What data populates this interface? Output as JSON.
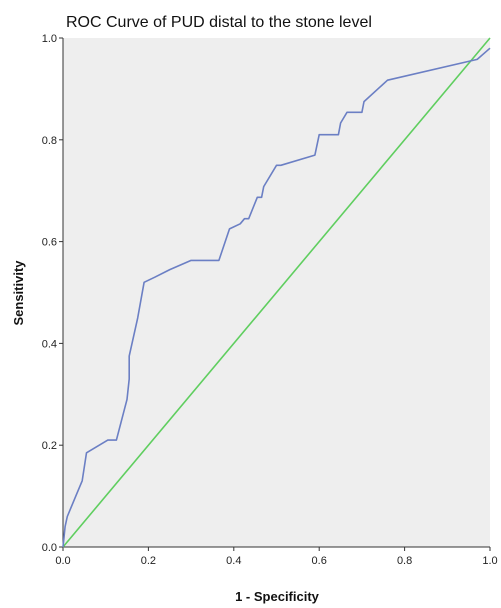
{
  "chart_data": {
    "type": "line",
    "title": "ROC Curve of PUD distal to the stone level",
    "xlabel": "1 - Specificity",
    "ylabel": "Sensitivity",
    "xlim": [
      0,
      1
    ],
    "ylim": [
      0,
      1
    ],
    "x_ticks": [
      "0.0",
      "0.2",
      "0.4",
      "0.6",
      "0.8",
      "1.0"
    ],
    "y_ticks": [
      "0.0",
      "0.2",
      "0.4",
      "0.6",
      "0.8",
      "1.0"
    ],
    "grid": false,
    "colors": {
      "plot_background": "#eeeeee",
      "roc": "#6b7fc4",
      "reference": "#5fce5f",
      "axis": "#333333"
    },
    "series": [
      {
        "name": "",
        "color": "#6b7fc4",
        "x": [
          0.0,
          0.005,
          0.01,
          0.03,
          0.045,
          0.055,
          0.105,
          0.125,
          0.15,
          0.155,
          0.155,
          0.175,
          0.19,
          0.215,
          0.25,
          0.3,
          0.365,
          0.39,
          0.415,
          0.425,
          0.435,
          0.455,
          0.465,
          0.47,
          0.5,
          0.51,
          0.59,
          0.6,
          0.645,
          0.65,
          0.665,
          0.7,
          0.705,
          0.76,
          0.97,
          1.0
        ],
        "y": [
          0.0,
          0.04,
          0.06,
          0.1,
          0.13,
          0.185,
          0.21,
          0.21,
          0.29,
          0.33,
          0.375,
          0.45,
          0.52,
          0.53,
          0.545,
          0.563,
          0.563,
          0.625,
          0.635,
          0.645,
          0.645,
          0.687,
          0.687,
          0.708,
          0.75,
          0.75,
          0.77,
          0.81,
          0.81,
          0.833,
          0.854,
          0.854,
          0.875,
          0.917,
          0.958,
          0.98
        ]
      },
      {
        "name": "",
        "color": "#5fce5f",
        "x": [
          0.0,
          1.0
        ],
        "y": [
          0.0,
          1.0
        ]
      }
    ]
  }
}
